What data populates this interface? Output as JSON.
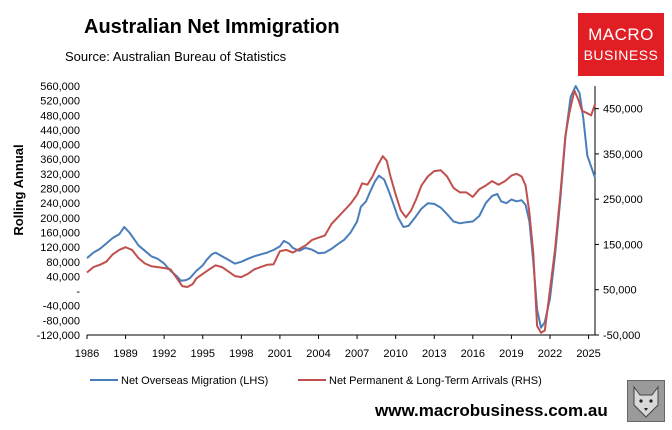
{
  "header": {
    "title": "Australian Net Immigration",
    "subtitle": "Source: Australian Bureau of Statistics"
  },
  "logo": {
    "line1": "MACRO",
    "line2": "BUSINESS",
    "color": "#e01e24"
  },
  "footer": {
    "website": "www.macrobusiness.com.au",
    "wolf_icon": "wolf-head-icon"
  },
  "chart_data": {
    "type": "line",
    "title": "Australian Net Immigration",
    "subtitle": "Source: Australian Bureau of Statistics",
    "ylabel": "Rolling Annual",
    "xlim": [
      1986,
      2025.5
    ],
    "ylim_left": [
      -120000,
      560000
    ],
    "ylim_right": [
      -50000,
      500000
    ],
    "x_ticks": [
      "1986",
      "1989",
      "1992",
      "1995",
      "1998",
      "2001",
      "2004",
      "2007",
      "2010",
      "2013",
      "2016",
      "2019",
      "2022",
      "2025"
    ],
    "y_ticks_left": [
      "560,000",
      "520,000",
      "480,000",
      "440,000",
      "400,000",
      "360,000",
      "320,000",
      "280,000",
      "240,000",
      "200,000",
      "160,000",
      "120,000",
      "80,000",
      "40,000",
      "-",
      "-40,000",
      "-80,000",
      "-120,000"
    ],
    "y_ticks_right": [
      "450,000",
      "350,000",
      "250,000",
      "150,000",
      "50,000",
      "-50,000"
    ],
    "legend_position": "bottom",
    "series": [
      {
        "name": "Net Overseas Migration (LHS)",
        "axis": "left",
        "color": "#4a7ebb",
        "points": [
          [
            1986,
            90000
          ],
          [
            1986.5,
            105000
          ],
          [
            1987,
            115000
          ],
          [
            1987.5,
            130000
          ],
          [
            1988,
            145000
          ],
          [
            1988.5,
            155000
          ],
          [
            1988.9,
            175000
          ],
          [
            1989.3,
            160000
          ],
          [
            1989.7,
            140000
          ],
          [
            1990,
            125000
          ],
          [
            1990.5,
            110000
          ],
          [
            1991,
            95000
          ],
          [
            1991.5,
            88000
          ],
          [
            1992,
            75000
          ],
          [
            1992.5,
            55000
          ],
          [
            1993,
            40000
          ],
          [
            1993.3,
            28000
          ],
          [
            1993.7,
            30000
          ],
          [
            1994,
            35000
          ],
          [
            1994.5,
            55000
          ],
          [
            1995,
            70000
          ],
          [
            1995.3,
            85000
          ],
          [
            1995.7,
            100000
          ],
          [
            1996,
            105000
          ],
          [
            1996.5,
            95000
          ],
          [
            1997,
            85000
          ],
          [
            1997.5,
            75000
          ],
          [
            1998,
            80000
          ],
          [
            1998.5,
            88000
          ],
          [
            1999,
            95000
          ],
          [
            1999.5,
            100000
          ],
          [
            2000,
            105000
          ],
          [
            2000.5,
            112000
          ],
          [
            2001,
            122000
          ],
          [
            2001.3,
            137000
          ],
          [
            2001.7,
            130000
          ],
          [
            2002,
            118000
          ],
          [
            2002.5,
            110000
          ],
          [
            2003,
            118000
          ],
          [
            2003.5,
            113000
          ],
          [
            2004,
            103000
          ],
          [
            2004.5,
            105000
          ],
          [
            2005,
            115000
          ],
          [
            2005.5,
            128000
          ],
          [
            2006,
            140000
          ],
          [
            2006.5,
            160000
          ],
          [
            2007,
            190000
          ],
          [
            2007.3,
            230000
          ],
          [
            2007.7,
            245000
          ],
          [
            2008,
            270000
          ],
          [
            2008.4,
            300000
          ],
          [
            2008.7,
            315000
          ],
          [
            2009.1,
            305000
          ],
          [
            2009.5,
            270000
          ],
          [
            2009.8,
            240000
          ],
          [
            2010.2,
            200000
          ],
          [
            2010.6,
            175000
          ],
          [
            2011,
            178000
          ],
          [
            2011.5,
            200000
          ],
          [
            2012,
            225000
          ],
          [
            2012.5,
            240000
          ],
          [
            2013,
            238000
          ],
          [
            2013.5,
            228000
          ],
          [
            2014,
            210000
          ],
          [
            2014.5,
            190000
          ],
          [
            2015,
            185000
          ],
          [
            2015.5,
            188000
          ],
          [
            2016,
            190000
          ],
          [
            2016.5,
            205000
          ],
          [
            2017,
            240000
          ],
          [
            2017.5,
            260000
          ],
          [
            2017.9,
            265000
          ],
          [
            2018.2,
            245000
          ],
          [
            2018.6,
            240000
          ],
          [
            2019,
            250000
          ],
          [
            2019.4,
            245000
          ],
          [
            2019.8,
            248000
          ],
          [
            2020.1,
            235000
          ],
          [
            2020.4,
            190000
          ],
          [
            2020.7,
            80000
          ],
          [
            2021.0,
            -50000
          ],
          [
            2021.3,
            -100000
          ],
          [
            2021.6,
            -85000
          ],
          [
            2022.0,
            -20000
          ],
          [
            2022.4,
            100000
          ],
          [
            2022.8,
            250000
          ],
          [
            2023.2,
            420000
          ],
          [
            2023.6,
            530000
          ],
          [
            2024.0,
            560000
          ],
          [
            2024.3,
            540000
          ],
          [
            2024.6,
            470000
          ],
          [
            2024.9,
            370000
          ],
          [
            2025.3,
            330000
          ],
          [
            2025.5,
            310000
          ]
        ]
      },
      {
        "name": "Net Permanent & Long-Term Arrivals (RHS)",
        "axis": "right",
        "color": "#c0504d",
        "points": [
          [
            1986,
            88000
          ],
          [
            1986.5,
            100000
          ],
          [
            1987,
            105000
          ],
          [
            1987.5,
            112000
          ],
          [
            1988,
            128000
          ],
          [
            1988.5,
            138000
          ],
          [
            1989,
            144000
          ],
          [
            1989.5,
            138000
          ],
          [
            1990,
            120000
          ],
          [
            1990.5,
            108000
          ],
          [
            1991,
            102000
          ],
          [
            1991.5,
            100000
          ],
          [
            1992,
            98000
          ],
          [
            1992.5,
            95000
          ],
          [
            1993,
            75000
          ],
          [
            1993.4,
            58000
          ],
          [
            1993.8,
            56000
          ],
          [
            1994.2,
            62000
          ],
          [
            1994.5,
            75000
          ],
          [
            1995,
            85000
          ],
          [
            1995.5,
            95000
          ],
          [
            1996,
            104000
          ],
          [
            1996.5,
            100000
          ],
          [
            1997,
            90000
          ],
          [
            1997.5,
            80000
          ],
          [
            1998,
            78000
          ],
          [
            1998.5,
            85000
          ],
          [
            1999,
            95000
          ],
          [
            1999.5,
            100000
          ],
          [
            2000,
            105000
          ],
          [
            2000.5,
            106000
          ],
          [
            2001,
            135000
          ],
          [
            2001.5,
            138000
          ],
          [
            2002,
            132000
          ],
          [
            2002.5,
            140000
          ],
          [
            2003,
            148000
          ],
          [
            2003.5,
            160000
          ],
          [
            2004,
            165000
          ],
          [
            2004.5,
            170000
          ],
          [
            2005,
            195000
          ],
          [
            2005.5,
            210000
          ],
          [
            2006,
            225000
          ],
          [
            2006.5,
            240000
          ],
          [
            2007,
            260000
          ],
          [
            2007.4,
            285000
          ],
          [
            2007.8,
            282000
          ],
          [
            2008.2,
            300000
          ],
          [
            2008.6,
            325000
          ],
          [
            2009,
            345000
          ],
          [
            2009.3,
            335000
          ],
          [
            2009.6,
            300000
          ],
          [
            2010,
            260000
          ],
          [
            2010.4,
            225000
          ],
          [
            2010.8,
            210000
          ],
          [
            2011.2,
            225000
          ],
          [
            2011.6,
            250000
          ],
          [
            2012,
            280000
          ],
          [
            2012.5,
            300000
          ],
          [
            2013,
            312000
          ],
          [
            2013.5,
            314000
          ],
          [
            2014,
            300000
          ],
          [
            2014.5,
            275000
          ],
          [
            2015,
            265000
          ],
          [
            2015.5,
            265000
          ],
          [
            2016,
            255000
          ],
          [
            2016.5,
            272000
          ],
          [
            2017,
            280000
          ],
          [
            2017.5,
            290000
          ],
          [
            2018,
            282000
          ],
          [
            2018.5,
            290000
          ],
          [
            2019,
            302000
          ],
          [
            2019.4,
            306000
          ],
          [
            2019.8,
            300000
          ],
          [
            2020.1,
            280000
          ],
          [
            2020.4,
            220000
          ],
          [
            2020.7,
            130000
          ],
          [
            2021.0,
            -30000
          ],
          [
            2021.3,
            -45000
          ],
          [
            2021.6,
            -40000
          ],
          [
            2022.0,
            50000
          ],
          [
            2022.4,
            140000
          ],
          [
            2022.8,
            260000
          ],
          [
            2023.2,
            390000
          ],
          [
            2023.5,
            440000
          ],
          [
            2023.9,
            490000
          ],
          [
            2024.2,
            470000
          ],
          [
            2024.5,
            445000
          ],
          [
            2024.9,
            440000
          ],
          [
            2025.2,
            435000
          ],
          [
            2025.5,
            460000
          ]
        ]
      }
    ]
  }
}
